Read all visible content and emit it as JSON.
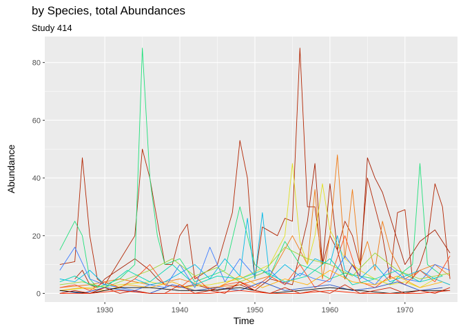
{
  "chart_data": {
    "type": "line",
    "title": "by Species, total Abundances",
    "subtitle": "Study 414",
    "xlabel": "Time",
    "ylabel": "Abundance",
    "xlim": [
      1922,
      1977
    ],
    "ylim": [
      -3,
      89
    ],
    "x_ticks": [
      1930,
      1940,
      1950,
      1960,
      1970
    ],
    "y_ticks": [
      0,
      20,
      40,
      60,
      80
    ],
    "grid": true,
    "legend": "none",
    "background": "#ebebeb",
    "gridline_color": "#ffffff",
    "series": [
      {
        "color": "#b22400",
        "x": [
          1924,
          1926,
          1927,
          1928,
          1929,
          1930,
          1934,
          1935,
          1936,
          1937,
          1938,
          1939,
          1940,
          1941,
          1942,
          1945,
          1947,
          1948,
          1949,
          1950,
          1951,
          1953,
          1954,
          1955,
          1956,
          1957,
          1958,
          1959,
          1960,
          1961,
          1962,
          1963,
          1964,
          1965,
          1966,
          1967,
          1968,
          1969,
          1970,
          1971,
          1972,
          1973,
          1974,
          1975,
          1976
        ],
        "y": [
          10,
          11,
          47,
          20,
          5,
          3,
          20,
          50,
          40,
          25,
          10,
          10,
          20,
          24,
          5,
          10,
          28,
          53,
          40,
          5,
          23,
          20,
          26,
          25,
          85,
          30,
          30,
          10,
          20,
          15,
          25,
          20,
          10,
          40,
          30,
          20,
          5,
          28,
          29,
          5,
          10,
          18,
          38,
          30,
          5
        ]
      },
      {
        "color": "#a61e00",
        "x": [
          1926,
          1927,
          1928,
          1929,
          1930,
          1934,
          1935,
          1936,
          1937,
          1938,
          1940,
          1942,
          1945,
          1948,
          1950,
          1952,
          1955,
          1957,
          1958,
          1959,
          1960,
          1961,
          1962,
          1963,
          1964,
          1965,
          1966,
          1967,
          1970,
          1972,
          1974,
          1976
        ],
        "y": [
          5,
          8,
          3,
          2,
          5,
          12,
          10,
          8,
          5,
          3,
          2,
          3,
          1,
          3,
          1,
          5,
          3,
          25,
          45,
          10,
          38,
          15,
          5,
          10,
          6,
          47,
          40,
          35,
          10,
          18,
          22,
          14
        ]
      },
      {
        "color": "#1fe07a",
        "x": [
          1924,
          1926,
          1927,
          1928,
          1929,
          1932,
          1934,
          1935,
          1936,
          1937,
          1938,
          1940,
          1942,
          1944,
          1946,
          1948,
          1950,
          1952,
          1954,
          1956,
          1958,
          1960,
          1962,
          1964,
          1966,
          1968,
          1970,
          1971,
          1972,
          1973,
          1975
        ],
        "y": [
          15,
          25,
          20,
          5,
          2,
          5,
          10,
          85,
          40,
          20,
          10,
          12,
          4,
          6,
          8,
          30,
          10,
          6,
          18,
          10,
          8,
          5,
          7,
          6,
          5,
          3,
          8,
          10,
          45,
          10,
          6
        ]
      },
      {
        "color": "#f07a12",
        "x": [
          1924,
          1928,
          1932,
          1936,
          1940,
          1944,
          1948,
          1952,
          1955,
          1957,
          1958,
          1959,
          1960,
          1961,
          1962,
          1963,
          1964,
          1965,
          1966,
          1967,
          1968,
          1970,
          1972,
          1974,
          1976
        ],
        "y": [
          2,
          3,
          5,
          3,
          5,
          2,
          3,
          6,
          20,
          10,
          36,
          5,
          20,
          48,
          12,
          36,
          10,
          18,
          8,
          25,
          15,
          5,
          8,
          10,
          6
        ]
      },
      {
        "color": "#e0e020",
        "x": [
          1924,
          1928,
          1932,
          1936,
          1940,
          1944,
          1948,
          1952,
          1954,
          1955,
          1956,
          1957,
          1958,
          1959,
          1960,
          1962,
          1964,
          1966,
          1968,
          1970,
          1972,
          1974,
          1976
        ],
        "y": [
          1,
          2,
          3,
          4,
          2,
          3,
          5,
          10,
          20,
          45,
          18,
          10,
          20,
          38,
          22,
          12,
          8,
          5,
          3,
          4,
          2,
          5,
          3
        ]
      },
      {
        "color": "#00b8e6",
        "x": [
          1924,
          1926,
          1928,
          1930,
          1932,
          1934,
          1936,
          1938,
          1940,
          1942,
          1944,
          1946,
          1948,
          1949,
          1950,
          1951,
          1952,
          1954,
          1956,
          1958,
          1960,
          1961,
          1962,
          1964,
          1966,
          1968,
          1970,
          1972,
          1974,
          1976
        ],
        "y": [
          5,
          4,
          8,
          3,
          2,
          5,
          3,
          4,
          7,
          10,
          5,
          12,
          6,
          26,
          5,
          28,
          5,
          10,
          6,
          12,
          10,
          20,
          8,
          5,
          10,
          4,
          6,
          8,
          5,
          3
        ]
      },
      {
        "color": "#3a7aff",
        "x": [
          1924,
          1926,
          1928,
          1930,
          1932,
          1934,
          1936,
          1938,
          1940,
          1942,
          1944,
          1946,
          1948,
          1950,
          1952,
          1954,
          1956,
          1958,
          1960,
          1962,
          1964,
          1966,
          1968,
          1970,
          1972,
          1974,
          1976
        ],
        "y": [
          8,
          16,
          5,
          3,
          2,
          1,
          3,
          2,
          10,
          2,
          16,
          4,
          12,
          6,
          8,
          3,
          7,
          5,
          4,
          13,
          6,
          3,
          9,
          5,
          4,
          10,
          8
        ]
      },
      {
        "color": "#9bd630",
        "x": [
          1924,
          1927,
          1930,
          1933,
          1936,
          1939,
          1942,
          1945,
          1948,
          1951,
          1954,
          1957,
          1960,
          1963,
          1966,
          1969,
          1972,
          1976
        ],
        "y": [
          3,
          4,
          2,
          5,
          8,
          12,
          6,
          9,
          4,
          7,
          16,
          12,
          10,
          6,
          14,
          8,
          5,
          7
        ]
      },
      {
        "color": "#ff4a1a",
        "x": [
          1924,
          1926,
          1928,
          1930,
          1932,
          1934,
          1936,
          1938,
          1940,
          1942,
          1944,
          1946,
          1948,
          1950,
          1952,
          1954,
          1956,
          1958,
          1960,
          1962,
          1964,
          1966,
          1968,
          1970,
          1972,
          1974,
          1976
        ],
        "y": [
          2,
          3,
          1,
          4,
          2,
          5,
          10,
          3,
          2,
          6,
          1,
          3,
          4,
          2,
          6,
          3,
          10,
          2,
          5,
          20,
          4,
          2,
          6,
          3,
          8,
          4,
          13
        ]
      },
      {
        "color": "#00d6b0",
        "x": [
          1924,
          1926,
          1928,
          1930,
          1933,
          1936,
          1939,
          1942,
          1945,
          1948,
          1951,
          1954,
          1957,
          1960,
          1963,
          1966,
          1969,
          1972,
          1975
        ],
        "y": [
          4,
          6,
          3,
          2,
          8,
          4,
          10,
          3,
          6,
          5,
          8,
          4,
          6,
          12,
          3,
          5,
          8,
          4,
          6
        ]
      },
      {
        "color": "#ffb000",
        "x": [
          1924,
          1927,
          1930,
          1933,
          1936,
          1939,
          1942,
          1945,
          1948,
          1951,
          1954,
          1957,
          1960,
          1963,
          1966,
          1969,
          1972,
          1975
        ],
        "y": [
          1,
          2,
          1,
          3,
          2,
          4,
          1,
          2,
          6,
          2,
          5,
          3,
          8,
          4,
          3,
          6,
          2,
          4
        ]
      },
      {
        "color": "#2050c8",
        "x": [
          1924,
          1927,
          1930,
          1933,
          1936,
          1939,
          1942,
          1945,
          1948,
          1951,
          1954,
          1957,
          1960,
          1963,
          1966,
          1969,
          1972,
          1975
        ],
        "y": [
          1,
          0,
          2,
          1,
          0,
          3,
          1,
          2,
          1,
          4,
          1,
          2,
          3,
          1,
          2,
          4,
          1,
          2
        ]
      },
      {
        "color": "#000000",
        "x": [
          1924,
          1928,
          1932,
          1936,
          1940,
          1944,
          1948,
          1952,
          1956,
          1960,
          1964,
          1968,
          1972,
          1976
        ],
        "y": [
          1,
          0,
          2,
          2,
          1,
          1,
          2,
          0,
          1,
          2,
          1,
          0,
          1,
          1
        ]
      },
      {
        "color": "#ff2b00",
        "x": [
          1924,
          1928,
          1932,
          1936,
          1940,
          1944,
          1948,
          1952,
          1956,
          1960,
          1964,
          1968,
          1972,
          1976
        ],
        "y": [
          0,
          0,
          1,
          0,
          0,
          0,
          1,
          0,
          0,
          1,
          0,
          0,
          0,
          1
        ]
      },
      {
        "color": "#cc1f00",
        "x": [
          1924,
          1926,
          1928,
          1930,
          1932,
          1934,
          1936,
          1938,
          1940,
          1942,
          1944,
          1946,
          1948,
          1950,
          1952,
          1954,
          1956,
          1958,
          1960,
          1962,
          1964,
          1966,
          1968,
          1970,
          1972,
          1974,
          1976
        ],
        "y": [
          0,
          1,
          0,
          2,
          0,
          1,
          0,
          0,
          3,
          0,
          1,
          0,
          4,
          1,
          0,
          2,
          0,
          1,
          0,
          3,
          0,
          1,
          2,
          0,
          1,
          0,
          2
        ]
      }
    ]
  }
}
